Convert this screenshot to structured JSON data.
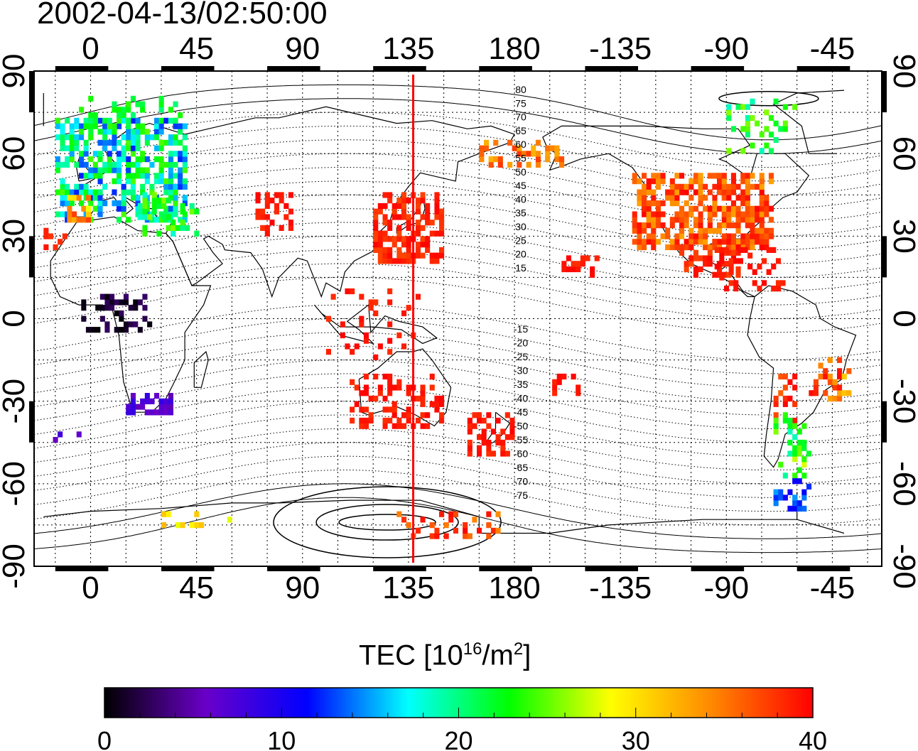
{
  "header": {
    "timestamp": "2002-04-13/02:50:00"
  },
  "map": {
    "lon_ticks_top": [
      "0",
      "45",
      "90",
      "135",
      "180",
      "-135",
      "-90",
      "-45"
    ],
    "lon_ticks_bottom": [
      "0",
      "45",
      "90",
      "135",
      "180",
      "-135",
      "-90",
      "-45"
    ],
    "lat_ticks_left": [
      "90",
      "60",
      "30",
      "0",
      "-30",
      "-60",
      "-90"
    ],
    "lat_ticks_right": [
      "90",
      "60",
      "30",
      "0",
      "-30",
      "-60",
      "-90"
    ],
    "contour_labels_north": [
      "80",
      "75",
      "70",
      "65",
      "60",
      "55",
      "50",
      "45",
      "40",
      "35",
      "30",
      "25",
      "20",
      "15"
    ],
    "contour_labels_south": [
      "-15",
      "-20",
      "-25",
      "-30",
      "-35",
      "-40",
      "-45",
      "-50",
      "-55",
      "-60",
      "-65",
      "-70",
      "-75"
    ],
    "meridian_line_lon": 137,
    "meridian_line_color": "#ff0000"
  },
  "colorbar": {
    "title_main": "TEC  [10",
    "title_exp": "16",
    "title_mid": "/m",
    "title_exp2": "2",
    "title_end": "]",
    "ticks": [
      "0",
      "10",
      "20",
      "30",
      "40"
    ],
    "colors": [
      "#000000",
      "#6a00c8",
      "#0000ff",
      "#00ffff",
      "#00ff00",
      "#ffff00",
      "#ff8800",
      "#ff0000"
    ]
  }
}
